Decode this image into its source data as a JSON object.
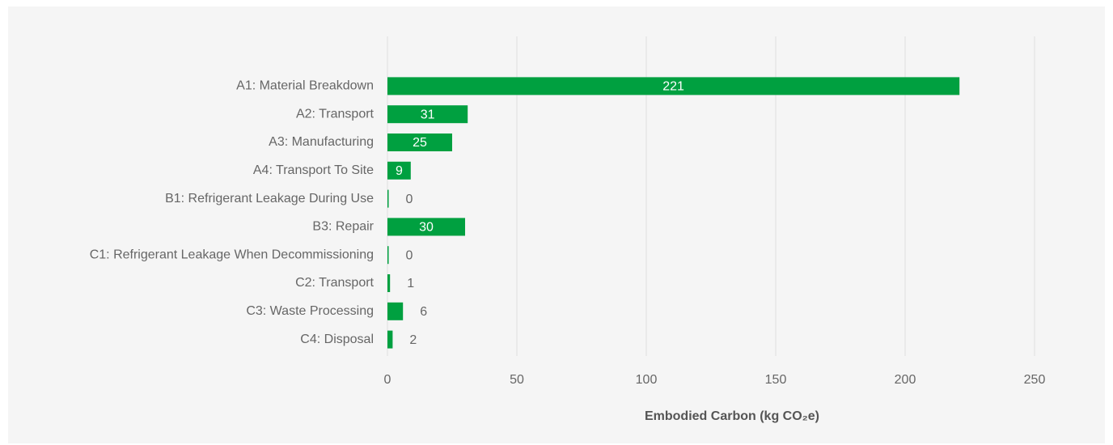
{
  "chart_data": {
    "type": "hbar",
    "x_label": "Embodied Carbon (kg CO₂e)",
    "categories": [
      "A1: Material Breakdown",
      "A2: Transport",
      "A3: Manufacturing",
      "A4: Transport To Site",
      "B1: Refrigerant Leakage During Use",
      "B3: Repair",
      "C1: Refrigerant Leakage When Decommissioning",
      "C2: Transport",
      "C3: Waste Processing",
      "C4: Disposal"
    ],
    "values": [
      221,
      31,
      25,
      9,
      0,
      30,
      0,
      1,
      6,
      2
    ],
    "color": "#00a040",
    "xlim": [
      0,
      250
    ],
    "xticks": [
      0,
      50,
      100,
      150,
      200,
      250
    ],
    "grid": true
  }
}
